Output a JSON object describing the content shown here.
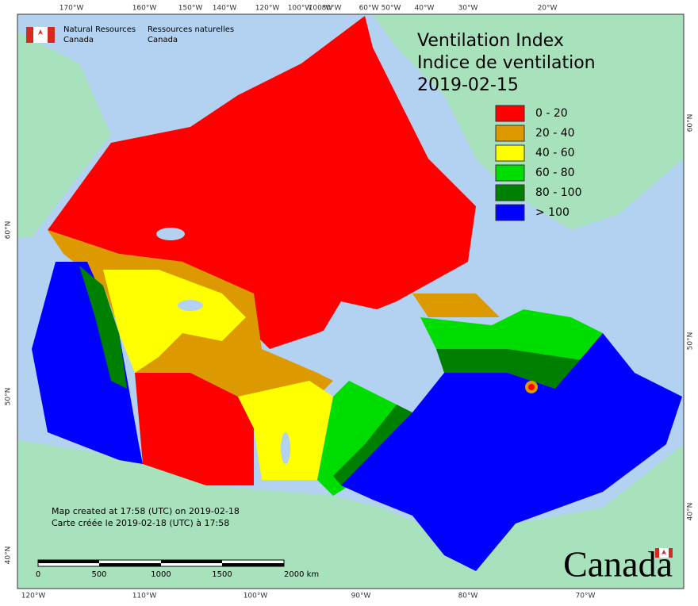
{
  "header": {
    "agency_en": [
      "Natural Resources",
      "Canada"
    ],
    "agency_fr": [
      "Ressources naturelles",
      "Canada"
    ]
  },
  "title": [
    "Ventilation Index",
    "Indice de ventilation",
    "2019-02-15"
  ],
  "legend": [
    {
      "label": "0 - 20",
      "color": "#ff0000"
    },
    {
      "label": "20 - 40",
      "color": "#dd9a00"
    },
    {
      "label": "40 - 60",
      "color": "#ffff00"
    },
    {
      "label": "60 - 80",
      "color": "#00dd00"
    },
    {
      "label": "80 - 100",
      "color": "#008000"
    },
    {
      "label": "> 100",
      "color": "#0000ff"
    }
  ],
  "graticule": {
    "top": [
      "170°W",
      "160°W",
      "150°W",
      "140°W",
      "120°W",
      "100°W",
      "100°W",
      "80°W",
      "60°W",
      "50°W",
      "40°W",
      "30°W",
      "20°W"
    ],
    "bottom": [
      "120°W",
      "110°W",
      "100°W",
      "90°W",
      "80°W",
      "70°W"
    ],
    "left": [
      "60°N",
      "50°N",
      "40°N"
    ],
    "right": [
      "60°N",
      "50°N",
      "40°N"
    ]
  },
  "notes": [
    "Map created at 17:58 (UTC) on 2019-02-18",
    "Carte créée le 2019-02-18 (UTC) à 17:58"
  ],
  "scale_bar": [
    "0",
    "500",
    "1000",
    "1500",
    "2000 km"
  ],
  "wordmark": "Canada"
}
